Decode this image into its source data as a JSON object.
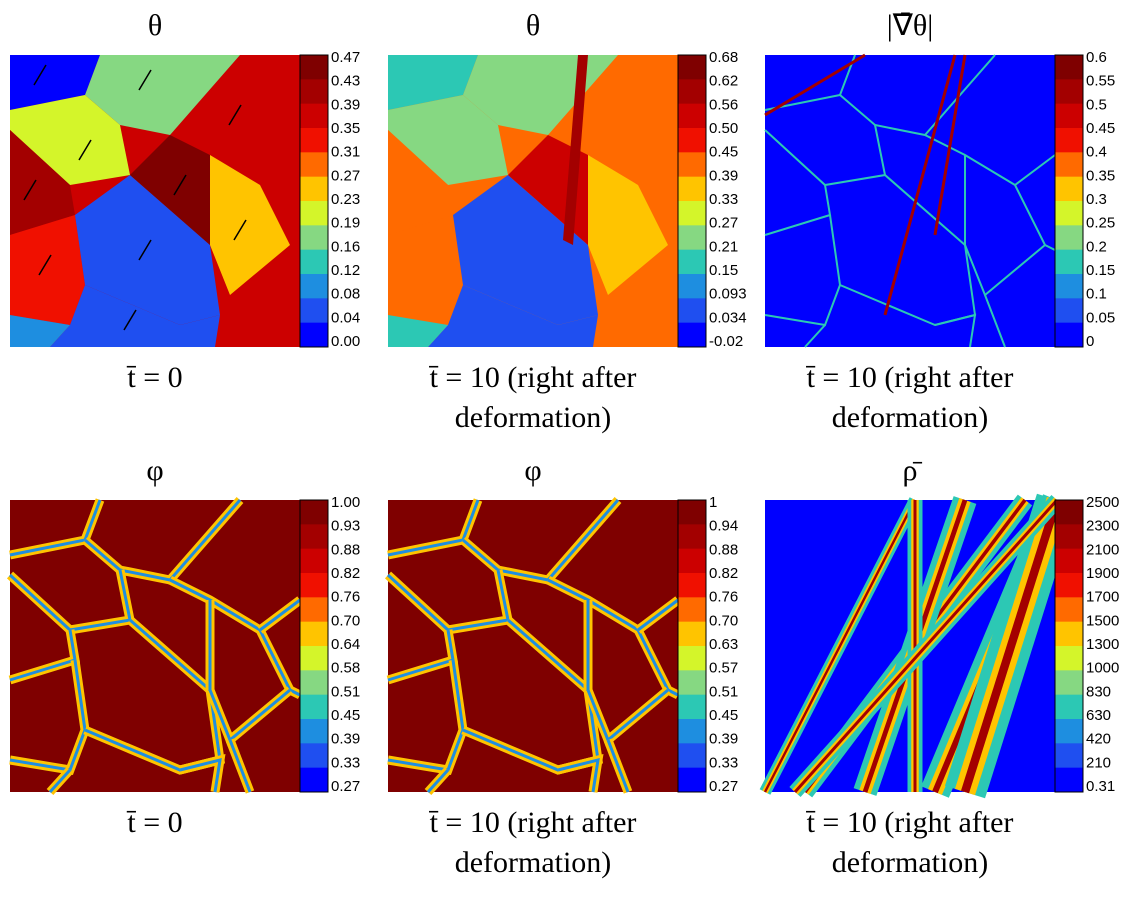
{
  "panels": [
    {
      "title": "θ",
      "colorbar": [
        "0.47",
        "0.43",
        "0.39",
        "0.35",
        "0.31",
        "0.27",
        "0.23",
        "0.19",
        "0.16",
        "0.12",
        "0.08",
        "0.04",
        "0.00"
      ],
      "caption": [
        "t̄ = 0"
      ]
    },
    {
      "title": "θ",
      "colorbar": [
        "0.68",
        "0.62",
        "0.56",
        "0.50",
        "0.45",
        "0.39",
        "0.33",
        "0.27",
        "0.21",
        "0.15",
        "0.093",
        "0.034",
        "-0.02"
      ],
      "caption": [
        "t̄ = 10 (right after",
        "deformation)"
      ]
    },
    {
      "title": "|∇̄θ|",
      "colorbar": [
        "0.6",
        "0.55",
        "0.5",
        "0.45",
        "0.4",
        "0.35",
        "0.3",
        "0.25",
        "0.2",
        "0.15",
        "0.1",
        "0.05",
        "0"
      ],
      "caption": [
        "t̄ = 10 (right after",
        "deformation)"
      ]
    },
    {
      "title": "φ",
      "colorbar": [
        "1.00",
        "0.93",
        "0.88",
        "0.82",
        "0.76",
        "0.70",
        "0.64",
        "0.58",
        "0.51",
        "0.45",
        "0.39",
        "0.33",
        "0.27"
      ],
      "caption": [
        "t̄ = 0"
      ]
    },
    {
      "title": "φ",
      "colorbar": [
        "1",
        "0.94",
        "0.88",
        "0.82",
        "0.76",
        "0.70",
        "0.63",
        "0.57",
        "0.51",
        "0.45",
        "0.39",
        "0.33",
        "0.27"
      ],
      "caption": [
        "t̄ = 10 (right after",
        "deformation)"
      ]
    },
    {
      "title": "ρ̄",
      "colorbar": [
        "2500",
        "2300",
        "2100",
        "1900",
        "1700",
        "1500",
        "1300",
        "1000",
        "830",
        "630",
        "420",
        "210",
        "0.31"
      ],
      "caption": [
        "t̄ = 10 (right after",
        "deformation)"
      ]
    }
  ],
  "colormap": [
    "#7f0000",
    "#a30000",
    "#cc0000",
    "#f01000",
    "#ff6a00",
    "#ffc400",
    "#d4f52a",
    "#86d882",
    "#2cc8b4",
    "#1e8ee0",
    "#1f4ff0",
    "#0000ff"
  ]
}
